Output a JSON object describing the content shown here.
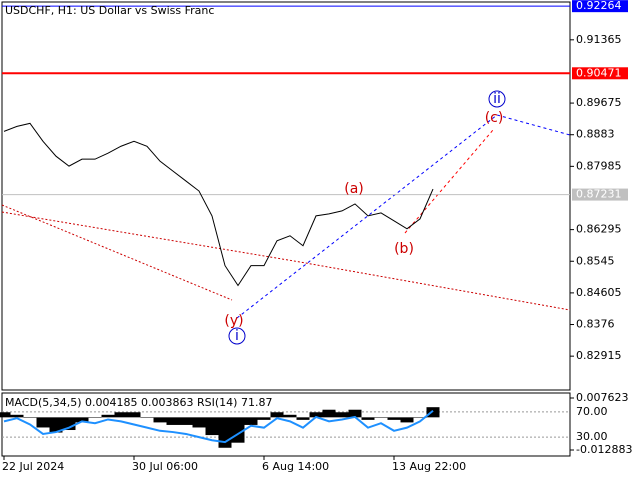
{
  "chart_data": [
    {
      "type": "line",
      "title": "USDCHF, H1:  US Dollar vs Swiss Franc",
      "categories": [
        "22 Jul 2024",
        null,
        null,
        null,
        null,
        null,
        null,
        null,
        null,
        null,
        "30 Jul 06:00",
        null,
        null,
        null,
        null,
        null,
        null,
        null,
        null,
        null,
        "6 Aug 14:00",
        null,
        null,
        null,
        null,
        null,
        null,
        null,
        null,
        null,
        "13 Aug 22:00",
        null,
        null,
        null,
        null,
        null,
        null,
        null,
        null,
        null,
        null,
        null,
        null,
        null
      ],
      "values": [
        0.8892,
        0.89053,
        0.89133,
        0.88655,
        0.88256,
        0.87991,
        0.88177,
        0.88177,
        0.88336,
        0.88522,
        0.88655,
        0.88522,
        0.88123,
        0.87858,
        0.87592,
        0.87326,
        0.86662,
        0.85334,
        0.84802,
        0.85334,
        0.85334,
        0.85998,
        0.86131,
        0.85865,
        0.86662,
        0.86715,
        0.86795,
        0.86981,
        0.86662,
        0.86742,
        0.86529,
        0.86317,
        0.86582,
        0.87379,
        null,
        null,
        null,
        null,
        null,
        null,
        null,
        null,
        null,
        null
      ],
      "color": "#000000",
      "ylim": [
        0.82011,
        0.92375
      ],
      "yticks": [
        0.91365,
        0.89675,
        0.8883,
        0.87985,
        0.86295,
        0.8545,
        0.84605,
        0.8376,
        0.82915
      ],
      "levels": [
        {
          "value": 0.92264,
          "color": "#0000ff"
        },
        {
          "value": 0.90471,
          "color": "#ff0000"
        },
        {
          "value": 0.87231,
          "color": "#c0c0c0"
        }
      ],
      "annotations": [
        "(a)",
        "(b)",
        "(c)",
        "(y)",
        "i",
        "ii"
      ]
    },
    {
      "type": "indicator",
      "title": "MACD(5,34,5) 0.004185 0.003863 RSI(14) 71.87",
      "histogram": {
        "color": "#000000",
        "values": [
          0.002,
          0.001,
          0.0,
          -0.004,
          -0.006,
          -0.005,
          -0.002,
          0.0,
          0.001,
          0.002,
          0.002,
          0.0,
          -0.002,
          -0.003,
          -0.003,
          -0.004,
          -0.007,
          -0.012,
          -0.01,
          -0.003,
          -0.001,
          0.002,
          0.001,
          -0.001,
          0.002,
          0.003,
          0.002,
          0.003,
          -0.001,
          0.0,
          -0.001,
          -0.002,
          0.0,
          0.004
        ]
      },
      "rsi": {
        "color": "#1e90ff",
        "axis": "y2",
        "values": [
          55,
          60,
          50,
          35,
          38,
          45,
          55,
          52,
          58,
          55,
          50,
          45,
          40,
          38,
          35,
          30,
          25,
          22,
          35,
          48,
          45,
          60,
          55,
          45,
          62,
          55,
          58,
          62,
          45,
          52,
          40,
          45,
          55,
          71.87
        ]
      },
      "ylim": [
        -0.015249,
        0.009595
      ],
      "yticks": [
        0.007623,
        -0.012883
      ],
      "y2lim": [
        0,
        100
      ],
      "y2ticks": [
        {
          "value": 70,
          "label": "70.00"
        },
        {
          "value": 30,
          "label": "30.00"
        }
      ]
    }
  ]
}
